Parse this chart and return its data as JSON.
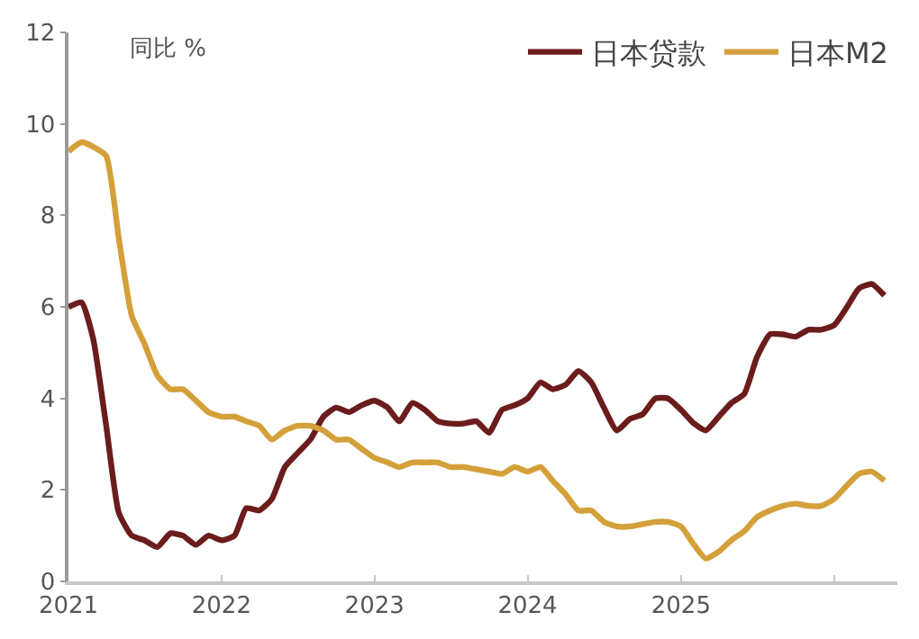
{
  "chart_data": {
    "type": "line",
    "annotations": [
      "同比 %"
    ],
    "x": [
      "2021-01",
      "2021-02",
      "2021-03",
      "2021-04",
      "2021-05",
      "2021-06",
      "2021-07",
      "2021-08",
      "2021-09",
      "2021-10",
      "2021-11",
      "2021-12",
      "2022-01",
      "2022-02",
      "2022-03",
      "2022-04",
      "2022-05",
      "2022-06",
      "2022-07",
      "2022-08",
      "2022-09",
      "2022-10",
      "2022-11",
      "2022-12",
      "2023-01",
      "2023-02",
      "2023-03",
      "2023-04",
      "2023-05",
      "2023-06",
      "2023-07",
      "2023-08",
      "2023-09",
      "2023-10",
      "2023-11",
      "2023-12",
      "2024-01",
      "2024-02",
      "2024-03",
      "2024-04",
      "2024-05",
      "2024-06",
      "2024-07",
      "2024-08",
      "2024-09",
      "2024-10",
      "2024-11",
      "2024-12",
      "2025-01",
      "2025-02",
      "2025-03",
      "2025-04",
      "2025-05",
      "2025-06",
      "2025-07",
      "2025-08",
      "2025-09",
      "2025-10",
      "2025-11",
      "2025-12",
      "2026-01",
      "2026-02",
      "2026-03",
      "2026-04",
      "2026-05"
    ],
    "series": [
      {
        "name": "日本贷款",
        "color": "#6b1c1c",
        "values": [
          6.0,
          6.1,
          5.3,
          3.4,
          1.5,
          1.0,
          0.9,
          0.75,
          1.05,
          1.0,
          0.8,
          1.0,
          0.9,
          1.0,
          1.6,
          1.55,
          1.8,
          2.5,
          2.8,
          3.1,
          3.6,
          3.8,
          3.7,
          3.85,
          3.95,
          3.8,
          3.5,
          3.9,
          3.75,
          3.5,
          3.45,
          3.45,
          3.5,
          3.25,
          3.75,
          3.85,
          4.0,
          4.35,
          4.2,
          4.3,
          4.6,
          4.35,
          3.8,
          3.3,
          3.55,
          3.65,
          4.0,
          4.0,
          3.75,
          3.45,
          3.3,
          3.6,
          3.9,
          4.1,
          4.9,
          5.4,
          5.4,
          5.35,
          5.5,
          5.5,
          5.6,
          6.0,
          6.4,
          6.5,
          6.25
        ]
      },
      {
        "name": "日本M2",
        "color": "#d4a03a",
        "values": [
          9.4,
          9.6,
          9.5,
          9.3,
          7.5,
          5.8,
          5.2,
          4.5,
          4.2,
          4.2,
          3.95,
          3.7,
          3.6,
          3.6,
          3.5,
          3.4,
          3.1,
          3.3,
          3.4,
          3.4,
          3.3,
          3.1,
          3.1,
          2.9,
          2.7,
          2.6,
          2.5,
          2.6,
          2.6,
          2.6,
          2.5,
          2.5,
          2.45,
          2.4,
          2.35,
          2.5,
          2.4,
          2.5,
          2.2,
          1.9,
          1.55,
          1.55,
          1.3,
          1.2,
          1.2,
          1.25,
          1.3,
          1.3,
          1.2,
          0.8,
          0.5,
          0.65,
          0.9,
          1.1,
          1.4,
          1.55,
          1.65,
          1.7,
          1.65,
          1.65,
          1.8,
          2.1,
          2.35,
          2.4,
          2.2
        ]
      }
    ],
    "xlim": [
      "2021-01",
      "2026-06"
    ],
    "xticks": [
      {
        "value": "2021-01",
        "label": "2021"
      },
      {
        "value": "2022-01",
        "label": "2022"
      },
      {
        "value": "2023-01",
        "label": "2023"
      },
      {
        "value": "2024-01",
        "label": "2024"
      },
      {
        "value": "2025-01",
        "label": "2025"
      },
      {
        "value": "2026-01",
        "label": null
      }
    ],
    "ylim": [
      0,
      12
    ],
    "yticks": [
      0,
      2,
      4,
      6,
      8,
      10,
      12
    ],
    "legend": "top right",
    "marker": "none",
    "line_style": "solid"
  }
}
